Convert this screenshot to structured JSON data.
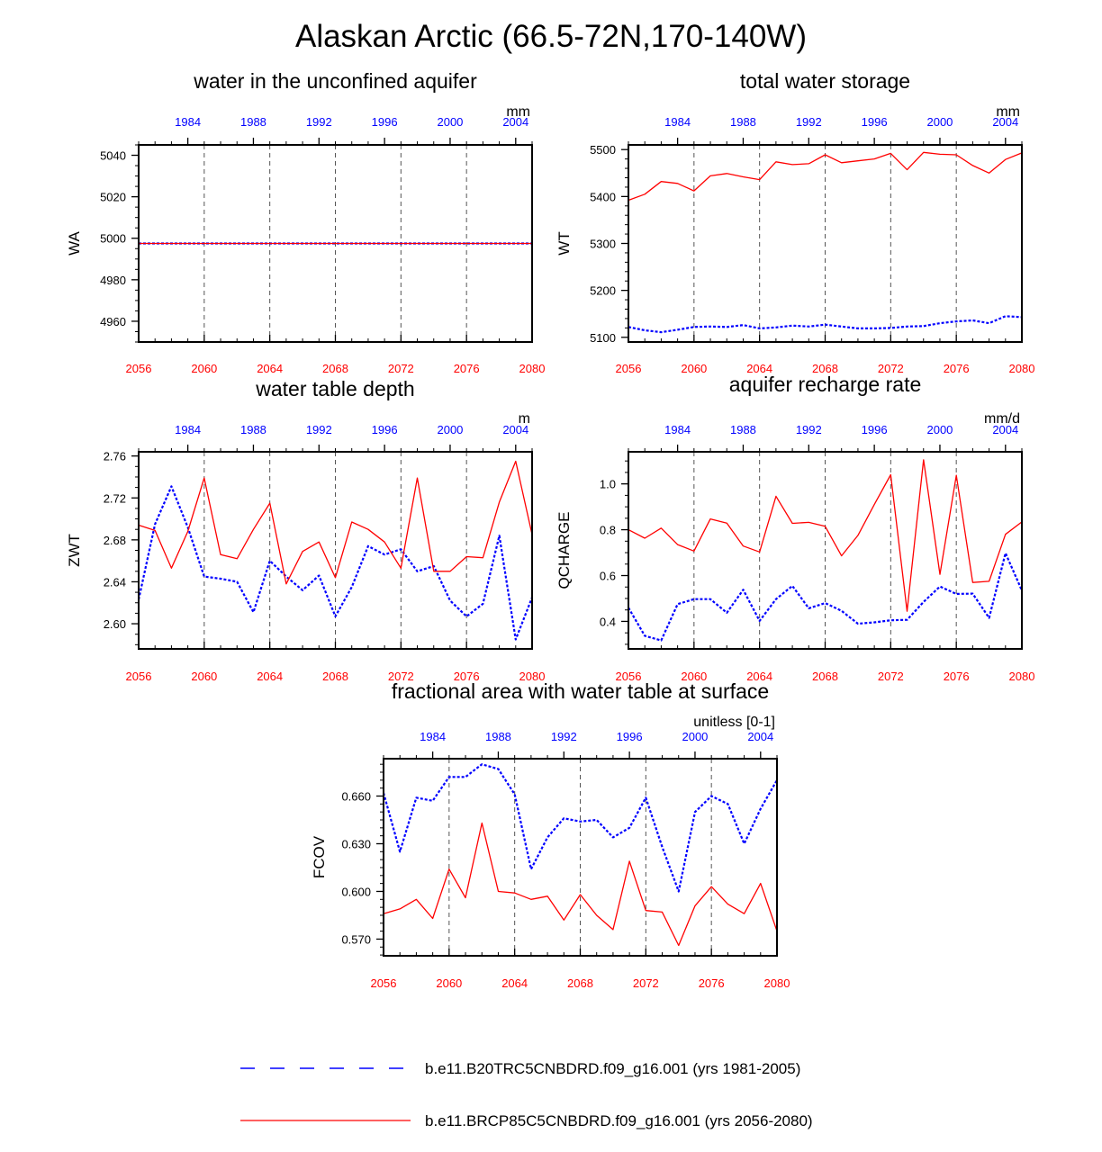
{
  "figure_title": "Alaskan Arctic (66.5-72N,170-140W)",
  "colors": {
    "past": "#0000ff",
    "future": "#ff0000",
    "axis": "#000000",
    "grid": "#555555"
  },
  "legend": [
    {
      "label": "b.e11.B20TRC5CNBDRD.f09_g16.001 (yrs 1981-2005)",
      "color": "#0000ff",
      "style": "dashed"
    },
    {
      "label": "b.e11.BRCP85C5CNBDRD.f09_g16.001 (yrs 2056-2080)",
      "color": "#ff0000",
      "style": "solid"
    }
  ],
  "chart_data": [
    {
      "id": "wa",
      "type": "line",
      "title": "water in the unconfined aquifer",
      "ylabel": "WA",
      "units": "mm",
      "xlim_bottom": [
        2056,
        2080
      ],
      "xticks_bottom": [
        2056,
        2060,
        2064,
        2068,
        2072,
        2076,
        2080
      ],
      "xlim_top": [
        1981,
        2005
      ],
      "xticks_top": [
        1984,
        1988,
        1992,
        1996,
        2000,
        2004
      ],
      "ylim": [
        4950,
        5045
      ],
      "yticks": [
        4960,
        4980,
        5000,
        5020,
        5040
      ],
      "ydecimals": 0,
      "yminor": 5,
      "series": [
        {
          "name": "b.e11.B20TRC5CNBDRD.f09_g16.001",
          "years": "1981-2005",
          "values": [
            4997.5,
            4997.5,
            4997.5,
            4997.5,
            4997.5,
            4997.5,
            4997.5,
            4997.5,
            4997.5,
            4997.5,
            4997.5,
            4997.5,
            4997.5,
            4997.5,
            4997.5,
            4997.5,
            4997.5,
            4997.5,
            4997.5,
            4997.5,
            4997.5,
            4997.5,
            4997.5,
            4997.5,
            4997.5
          ]
        },
        {
          "name": "b.e11.BRCP85C5CNBDRD.f09_g16.001",
          "years": "2056-2080",
          "values": [
            4997.5,
            4997.5,
            4997.5,
            4997.5,
            4997.5,
            4997.5,
            4997.5,
            4997.5,
            4997.5,
            4997.5,
            4997.5,
            4997.5,
            4997.5,
            4997.5,
            4997.5,
            4997.5,
            4997.5,
            4997.5,
            4997.5,
            4997.5,
            4997.5,
            4997.5,
            4997.5,
            4997.5,
            4997.5
          ]
        }
      ]
    },
    {
      "id": "wt",
      "type": "line",
      "title": "total water storage",
      "ylabel": "WT",
      "units": "mm",
      "xlim_bottom": [
        2056,
        2080
      ],
      "xticks_bottom": [
        2056,
        2060,
        2064,
        2068,
        2072,
        2076,
        2080
      ],
      "xlim_top": [
        1981,
        2005
      ],
      "xticks_top": [
        1984,
        1988,
        1992,
        1996,
        2000,
        2004
      ],
      "ylim": [
        5090,
        5510
      ],
      "yticks": [
        5100,
        5200,
        5300,
        5400,
        5500
      ],
      "ydecimals": 0,
      "yminor": 20,
      "series": [
        {
          "name": "b.e11.B20TRC5CNBDRD.f09_g16.001",
          "years": "1981-2005",
          "values": [
            5122,
            5115,
            5111,
            5116,
            5122,
            5123,
            5122,
            5126,
            5119,
            5121,
            5125,
            5123,
            5127,
            5123,
            5119,
            5119,
            5120,
            5123,
            5124,
            5130,
            5134,
            5136,
            5130,
            5145,
            5143
          ]
        },
        {
          "name": "b.e11.BRCP85C5CNBDRD.f09_g16.001",
          "years": "2056-2080",
          "values": [
            5392,
            5405,
            5432,
            5428,
            5412,
            5444,
            5449,
            5442,
            5436,
            5474,
            5468,
            5470,
            5489,
            5472,
            5476,
            5480,
            5492,
            5457,
            5494,
            5490,
            5489,
            5466,
            5450,
            5479,
            5493
          ]
        }
      ]
    },
    {
      "id": "zwt",
      "type": "line",
      "title": "water table depth",
      "ylabel": "ZWT",
      "units": "m",
      "xlim_bottom": [
        2056,
        2080
      ],
      "xticks_bottom": [
        2056,
        2060,
        2064,
        2068,
        2072,
        2076,
        2080
      ],
      "xlim_top": [
        1981,
        2005
      ],
      "xticks_top": [
        1984,
        1988,
        1992,
        1996,
        2000,
        2004
      ],
      "ylim": [
        2.576,
        2.764
      ],
      "yticks": [
        2.6,
        2.64,
        2.68,
        2.72,
        2.76
      ],
      "ydecimals": 2,
      "yminor": 0.01,
      "series": [
        {
          "name": "b.e11.B20TRC5CNBDRD.f09_g16.001",
          "years": "1981-2005",
          "values": [
            2.623,
            2.695,
            2.731,
            2.692,
            2.645,
            2.643,
            2.64,
            2.611,
            2.66,
            2.645,
            2.632,
            2.646,
            2.607,
            2.635,
            2.674,
            2.666,
            2.671,
            2.65,
            2.655,
            2.622,
            2.607,
            2.619,
            2.684,
            2.585,
            2.625
          ]
        },
        {
          "name": "b.e11.BRCP85C5CNBDRD.f09_g16.001",
          "years": "2056-2080",
          "values": [
            2.694,
            2.689,
            2.653,
            2.688,
            2.739,
            2.666,
            2.662,
            2.69,
            2.715,
            2.638,
            2.669,
            2.678,
            2.644,
            2.697,
            2.69,
            2.678,
            2.653,
            2.739,
            2.65,
            2.65,
            2.664,
            2.663,
            2.716,
            2.755,
            2.685
          ]
        }
      ]
    },
    {
      "id": "qcharge",
      "type": "line",
      "title": "aquifer recharge rate",
      "ylabel": "QCHARGE",
      "units": "mm/d",
      "xlim_bottom": [
        2056,
        2080
      ],
      "xticks_bottom": [
        2056,
        2060,
        2064,
        2068,
        2072,
        2076,
        2080
      ],
      "xlim_top": [
        1981,
        2005
      ],
      "xticks_top": [
        1984,
        1988,
        1992,
        1996,
        2000,
        2004
      ],
      "ylim": [
        0.28,
        1.14
      ],
      "yticks": [
        0.4,
        0.6,
        0.8,
        1.0
      ],
      "ydecimals": 1,
      "yminor": 0.05,
      "series": [
        {
          "name": "b.e11.B20TRC5CNBDRD.f09_g16.001",
          "years": "1981-2005",
          "values": [
            0.46,
            0.337,
            0.317,
            0.475,
            0.497,
            0.497,
            0.438,
            0.538,
            0.402,
            0.497,
            0.555,
            0.457,
            0.48,
            0.446,
            0.39,
            0.396,
            0.405,
            0.407,
            0.485,
            0.552,
            0.52,
            0.521,
            0.415,
            0.698,
            0.535
          ]
        },
        {
          "name": "b.e11.BRCP85C5CNBDRD.f09_g16.001",
          "years": "2056-2080",
          "values": [
            0.8,
            0.763,
            0.807,
            0.735,
            0.707,
            0.847,
            0.829,
            0.729,
            0.703,
            0.946,
            0.828,
            0.832,
            0.815,
            0.686,
            0.775,
            0.91,
            1.04,
            0.444,
            1.105,
            0.605,
            1.037,
            0.57,
            0.575,
            0.78,
            0.834
          ]
        }
      ]
    },
    {
      "id": "fcov",
      "type": "line",
      "title": "fractional area with water table at surface",
      "ylabel": "FCOV",
      "units": "unitless [0-1]",
      "xlim_bottom": [
        2056,
        2080
      ],
      "xticks_bottom": [
        2056,
        2060,
        2064,
        2068,
        2072,
        2076,
        2080
      ],
      "xlim_top": [
        1981,
        2005
      ],
      "xticks_top": [
        1984,
        1988,
        1992,
        1996,
        2000,
        2004
      ],
      "ylim": [
        0.5595,
        0.6835
      ],
      "yticks": [
        0.57,
        0.6,
        0.63,
        0.66
      ],
      "ydecimals": 3,
      "yminor": 0.005,
      "series": [
        {
          "name": "b.e11.B20TRC5CNBDRD.f09_g16.001",
          "years": "1981-2005",
          "values": [
            0.662,
            0.625,
            0.659,
            0.657,
            0.672,
            0.672,
            0.68,
            0.677,
            0.661,
            0.614,
            0.634,
            0.646,
            0.644,
            0.645,
            0.634,
            0.64,
            0.659,
            0.628,
            0.6,
            0.65,
            0.66,
            0.655,
            0.63,
            0.652,
            0.67
          ]
        },
        {
          "name": "b.e11.BRCP85C5CNBDRD.f09_g16.001",
          "years": "2056-2080",
          "values": [
            0.586,
            0.589,
            0.595,
            0.583,
            0.614,
            0.596,
            0.643,
            0.6,
            0.599,
            0.595,
            0.597,
            0.582,
            0.598,
            0.585,
            0.576,
            0.619,
            0.588,
            0.587,
            0.566,
            0.591,
            0.603,
            0.592,
            0.586,
            0.605,
            0.575
          ]
        }
      ]
    }
  ]
}
